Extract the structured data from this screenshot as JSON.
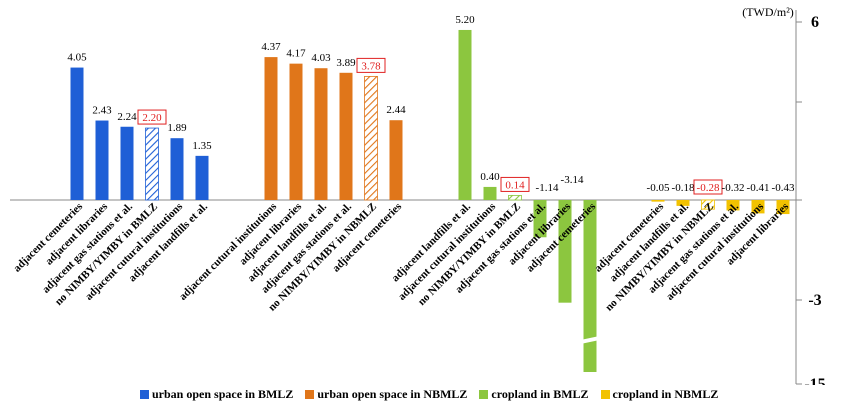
{
  "chart_data": {
    "type": "bar",
    "unit": "(TWD/m²)",
    "y_ticks": [
      6,
      -3,
      -15
    ],
    "ylim": [
      -15,
      6
    ],
    "axis_break": true,
    "legend_position": "bottom",
    "groups": [
      {
        "name": "urban open space in BMLZ",
        "color": "#1f5fd6",
        "categories": [
          "adjacent cemeteries",
          "adjacent libraries",
          "adjacent gas stations et al.",
          "no NIMBY/YIMBY in BMLZ",
          "adjacent cutural institutions",
          "adjacent landfills et al."
        ],
        "values": [
          4.05,
          2.43,
          2.24,
          2.2,
          1.89,
          1.35
        ],
        "value_labels": [
          "4.05",
          "2.43",
          "2.24",
          "2.20",
          "1.89",
          "1.35"
        ],
        "reference_index": 3
      },
      {
        "name": "urban open space in NBMLZ",
        "color": "#e0761a",
        "categories": [
          "adjacent cutural institutions",
          "adjacent libraries",
          "adjacent landfills et al.",
          "adjacent gas stations et al.",
          "no NIMBY/YIMBY in NBMLZ",
          "adjacent cemeteries"
        ],
        "values": [
          4.37,
          4.17,
          4.03,
          3.89,
          3.78,
          2.44
        ],
        "value_labels": [
          "4.37",
          "4.17",
          "4.03",
          "3.89",
          "3.78",
          "2.44"
        ],
        "reference_index": 4
      },
      {
        "name": "cropland in BMLZ",
        "color": "#8cc63f",
        "categories": [
          "adjacent landfills et al.",
          "adjacent cutural institutions",
          "no NIMBY/YIMBY in BMLZ",
          "adjacent gas stations et al.",
          "adjacent libraries",
          "adjacent cemeteries"
        ],
        "values": [
          5.2,
          0.4,
          0.14,
          -1.14,
          -3.14,
          -13.5
        ],
        "value_labels": [
          "5.20",
          "0.40",
          "0.14",
          "-1.14",
          "-3.14",
          ""
        ],
        "reference_index": 2
      },
      {
        "name": "cropland in NBMLZ",
        "color": "#f2c200",
        "categories": [
          "adjacent cemeteries",
          "adjacent landfills et al.",
          "no NIMBY/YIMBY in NBMLZ",
          "adjacent gas stations et al.",
          "adjacent cutural institutions",
          "adjacent libraries"
        ],
        "values": [
          -0.05,
          -0.18,
          -0.28,
          -0.32,
          -0.41,
          -0.43
        ],
        "value_labels": [
          "-0.05",
          "-0.18",
          "-0.28",
          "-0.32",
          "-0.41",
          "-0.43"
        ],
        "reference_index": 2
      }
    ]
  }
}
